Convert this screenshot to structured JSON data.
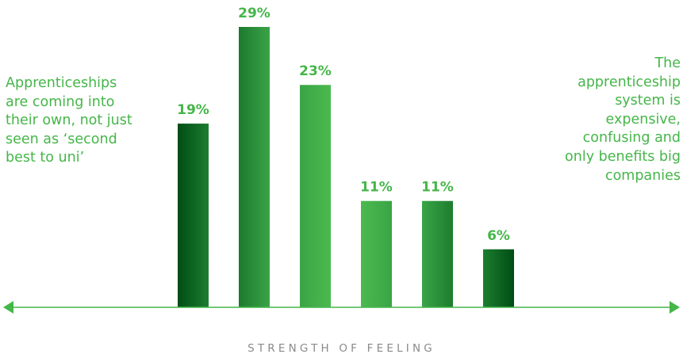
{
  "left_note": "Apprenticeships\nare coming into\ntheir own, not just\nseen as ‘second\nbest to uni’",
  "right_note": "The\napprenticeship\nsystem is\nexpensive,\nconfusing and\nonly benefits big\ncompanies",
  "colors": {
    "label": "#45b649",
    "axis_line": "#45b649",
    "axis_title": "#8a8a8a",
    "dark_green": "#004d14",
    "mid_green": "#2c9a3f",
    "light_green": "#4cb94f"
  },
  "chart_data": {
    "type": "bar",
    "categories": [
      "",
      "",
      "",
      "",
      "",
      ""
    ],
    "values": [
      19,
      29,
      23,
      11,
      11,
      6
    ],
    "value_labels": [
      "19%",
      "29%",
      "23%",
      "11%",
      "11%",
      "6%"
    ],
    "xlabel": "STRENGTH OF FEELING",
    "ylabel": "",
    "ylim": [
      0,
      29
    ],
    "bar_colors": [
      [
        "#004d14",
        "#1d7d2f"
      ],
      [
        "#1c7a2e",
        "#3aa446"
      ],
      [
        "#3aa446",
        "#4cb94f"
      ],
      [
        "#4cb94f",
        "#3aa446"
      ],
      [
        "#3aa446",
        "#1d7d2f"
      ],
      [
        "#1d7d2f",
        "#004d14"
      ]
    ],
    "grid": false,
    "legend": "none",
    "axis_arrows": "both-ends"
  }
}
